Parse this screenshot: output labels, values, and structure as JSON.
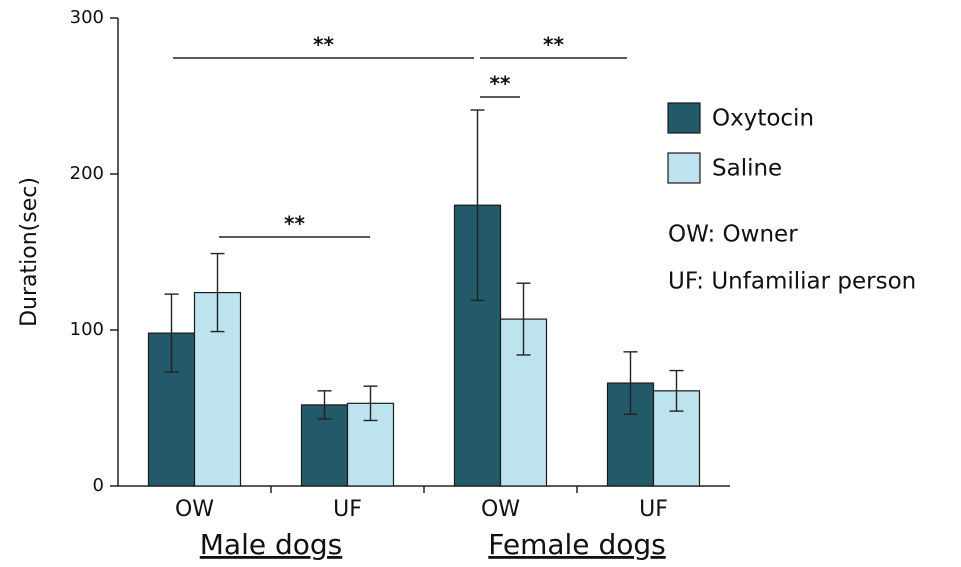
{
  "chart_data": {
    "type": "bar",
    "ylabel": "Duration(sec)",
    "categories": [
      "OW",
      "UF",
      "OW",
      "UF"
    ],
    "groups": [
      "Male dogs",
      "Female dogs"
    ],
    "series": [
      {
        "name": "Oxytocin",
        "color": "#235a69",
        "values": [
          98,
          52,
          180,
          66
        ],
        "errors": [
          25,
          9,
          61,
          20
        ]
      },
      {
        "name": "Saline",
        "color": "#bde3ee",
        "values": [
          124,
          53,
          107,
          61
        ],
        "errors": [
          25,
          11,
          23,
          13
        ]
      }
    ],
    "ylim": [
      0,
      300
    ],
    "yticks": [
      0,
      100,
      200,
      300
    ],
    "annotations": [
      "OW: Owner",
      "UF: Unfamiliar person"
    ],
    "significance": [
      "**",
      "**",
      "**",
      "**"
    ]
  }
}
